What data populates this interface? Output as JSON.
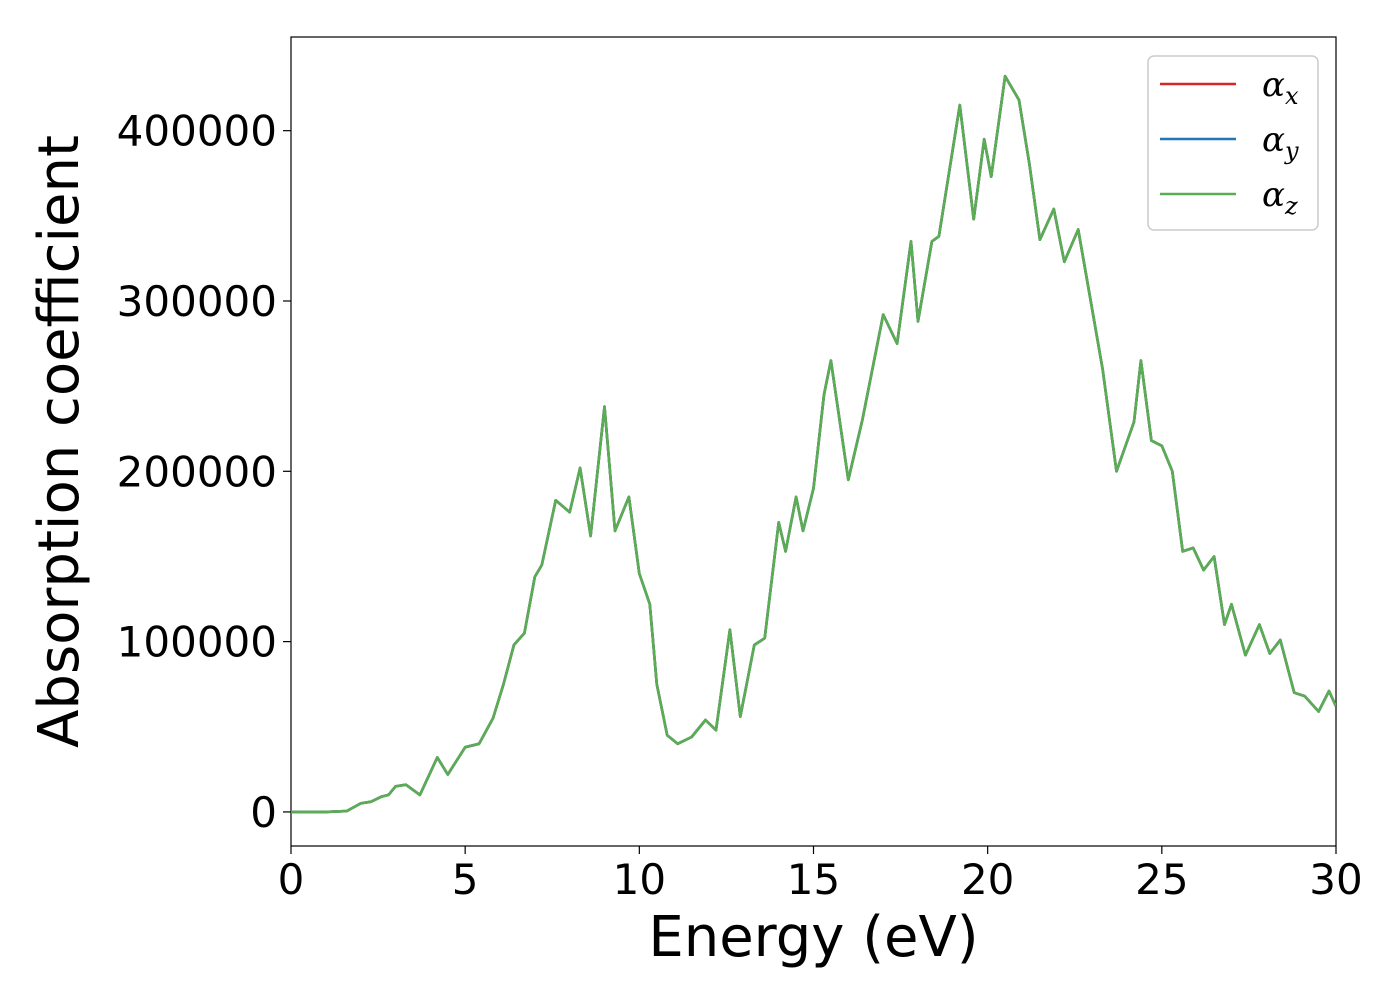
{
  "chart_data": {
    "type": "line",
    "title": "",
    "xlabel": "Energy (eV)",
    "ylabel": "Absorption coefficient",
    "xlim": [
      0,
      30
    ],
    "ylim": [
      -20000,
      455000
    ],
    "xticks": [
      0,
      5,
      10,
      15,
      20,
      25,
      30
    ],
    "yticks": [
      0,
      100000,
      200000,
      300000,
      400000
    ],
    "grid": false,
    "legend": {
      "position": "top-right"
    },
    "series": [
      {
        "name": "αx",
        "symbol": "α",
        "subscript": "x",
        "color": "#d62728",
        "x": [
          0,
          1,
          1.6,
          2,
          2.3,
          2.6,
          2.8,
          3.0,
          3.3,
          3.7,
          4.2,
          4.5,
          5.0,
          5.4,
          5.8,
          6.1,
          6.4,
          6.7,
          7.0,
          7.2,
          7.6,
          8.0,
          8.3,
          8.6,
          9.0,
          9.3,
          9.7,
          10.0,
          10.3,
          10.5,
          10.8,
          11.1,
          11.5,
          11.9,
          12.2,
          12.6,
          12.9,
          13.3,
          13.6,
          14.0,
          14.2,
          14.5,
          14.7,
          15.0,
          15.3,
          15.5,
          16.0,
          16.4,
          17.0,
          17.4,
          17.8,
          18.0,
          18.4,
          18.6,
          19.2,
          19.6,
          19.9,
          20.1,
          20.5,
          20.9,
          21.2,
          21.5,
          21.9,
          22.2,
          22.6,
          23.0,
          23.3,
          23.7,
          24.2,
          24.4,
          24.7,
          25.0,
          25.3,
          25.6,
          25.9,
          26.2,
          26.5,
          26.8,
          27.0,
          27.4,
          27.8,
          28.1,
          28.4,
          28.8,
          29.1,
          29.5,
          29.8,
          30.0
        ],
        "y": [
          0,
          0,
          500,
          5000,
          6000,
          9000,
          10000,
          15000,
          16000,
          10000,
          32000,
          22000,
          38000,
          40000,
          55000,
          75000,
          98000,
          105000,
          138000,
          145000,
          183000,
          176000,
          202000,
          162000,
          238000,
          165000,
          185000,
          140000,
          122000,
          75000,
          45000,
          40000,
          44000,
          54000,
          48000,
          107000,
          56000,
          98000,
          102000,
          170000,
          153000,
          185000,
          165000,
          190000,
          245000,
          265000,
          195000,
          230000,
          292000,
          275000,
          335000,
          288000,
          335000,
          338000,
          415000,
          348000,
          395000,
          373000,
          432000,
          418000,
          380000,
          336000,
          354000,
          323000,
          342000,
          295000,
          260000,
          200000,
          229000,
          265000,
          218000,
          215000,
          200000,
          153000,
          155000,
          142000,
          150000,
          110000,
          122000,
          92000,
          110000,
          93000,
          101000,
          70000,
          68000,
          59000,
          71000,
          62000
        ]
      },
      {
        "name": "αy",
        "symbol": "α",
        "subscript": "y",
        "color": "#1f77b4",
        "x": [
          0,
          1,
          1.6,
          2,
          2.3,
          2.6,
          2.8,
          3.0,
          3.3,
          3.7,
          4.2,
          4.5,
          5.0,
          5.4,
          5.8,
          6.1,
          6.4,
          6.7,
          7.0,
          7.2,
          7.6,
          8.0,
          8.3,
          8.6,
          9.0,
          9.3,
          9.7,
          10.0,
          10.3,
          10.5,
          10.8,
          11.1,
          11.5,
          11.9,
          12.2,
          12.6,
          12.9,
          13.3,
          13.6,
          14.0,
          14.2,
          14.5,
          14.7,
          15.0,
          15.3,
          15.5,
          16.0,
          16.4,
          17.0,
          17.4,
          17.8,
          18.0,
          18.4,
          18.6,
          19.2,
          19.6,
          19.9,
          20.1,
          20.5,
          20.9,
          21.2,
          21.5,
          21.9,
          22.2,
          22.6,
          23.0,
          23.3,
          23.7,
          24.2,
          24.4,
          24.7,
          25.0,
          25.3,
          25.6,
          25.9,
          26.2,
          26.5,
          26.8,
          27.0,
          27.4,
          27.8,
          28.1,
          28.4,
          28.8,
          29.1,
          29.5,
          29.8,
          30.0
        ],
        "y": [
          0,
          0,
          500,
          5000,
          6000,
          9000,
          10000,
          15000,
          16000,
          10000,
          32000,
          22000,
          38000,
          40000,
          55000,
          75000,
          98000,
          105000,
          138000,
          145000,
          183000,
          176000,
          202000,
          162000,
          238000,
          165000,
          185000,
          140000,
          122000,
          75000,
          45000,
          40000,
          44000,
          54000,
          48000,
          107000,
          56000,
          98000,
          102000,
          170000,
          153000,
          185000,
          165000,
          190000,
          245000,
          265000,
          195000,
          230000,
          292000,
          275000,
          335000,
          288000,
          335000,
          338000,
          415000,
          348000,
          395000,
          373000,
          432000,
          418000,
          380000,
          336000,
          354000,
          323000,
          342000,
          295000,
          260000,
          200000,
          229000,
          265000,
          218000,
          215000,
          200000,
          153000,
          155000,
          142000,
          150000,
          110000,
          122000,
          92000,
          110000,
          93000,
          101000,
          70000,
          68000,
          59000,
          71000,
          62000
        ]
      },
      {
        "name": "αz",
        "symbol": "α",
        "subscript": "z",
        "color": "#5aad53",
        "x": [
          0,
          1,
          1.6,
          2,
          2.3,
          2.6,
          2.8,
          3.0,
          3.3,
          3.7,
          4.2,
          4.5,
          5.0,
          5.4,
          5.8,
          6.1,
          6.4,
          6.7,
          7.0,
          7.2,
          7.6,
          8.0,
          8.3,
          8.6,
          9.0,
          9.3,
          9.7,
          10.0,
          10.3,
          10.5,
          10.8,
          11.1,
          11.5,
          11.9,
          12.2,
          12.6,
          12.9,
          13.3,
          13.6,
          14.0,
          14.2,
          14.5,
          14.7,
          15.0,
          15.3,
          15.5,
          16.0,
          16.4,
          17.0,
          17.4,
          17.8,
          18.0,
          18.4,
          18.6,
          19.2,
          19.6,
          19.9,
          20.1,
          20.5,
          20.9,
          21.2,
          21.5,
          21.9,
          22.2,
          22.6,
          23.0,
          23.3,
          23.7,
          24.2,
          24.4,
          24.7,
          25.0,
          25.3,
          25.6,
          25.9,
          26.2,
          26.5,
          26.8,
          27.0,
          27.4,
          27.8,
          28.1,
          28.4,
          28.8,
          29.1,
          29.5,
          29.8,
          30.0
        ],
        "y": [
          0,
          0,
          500,
          5000,
          6000,
          9000,
          10000,
          15000,
          16000,
          10000,
          32000,
          22000,
          38000,
          40000,
          55000,
          75000,
          98000,
          105000,
          138000,
          145000,
          183000,
          176000,
          202000,
          162000,
          238000,
          165000,
          185000,
          140000,
          122000,
          75000,
          45000,
          40000,
          44000,
          54000,
          48000,
          107000,
          56000,
          98000,
          102000,
          170000,
          153000,
          185000,
          165000,
          190000,
          245000,
          265000,
          195000,
          230000,
          292000,
          275000,
          335000,
          288000,
          335000,
          338000,
          415000,
          348000,
          395000,
          373000,
          432000,
          418000,
          380000,
          336000,
          354000,
          323000,
          342000,
          295000,
          260000,
          200000,
          229000,
          265000,
          218000,
          215000,
          200000,
          153000,
          155000,
          142000,
          150000,
          110000,
          122000,
          92000,
          110000,
          93000,
          101000,
          70000,
          68000,
          59000,
          71000,
          62000
        ]
      }
    ]
  }
}
